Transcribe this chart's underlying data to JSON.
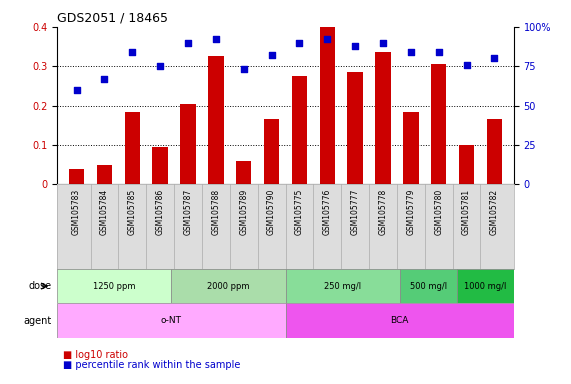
{
  "title": "GDS2051 / 18465",
  "samples": [
    "GSM105783",
    "GSM105784",
    "GSM105785",
    "GSM105786",
    "GSM105787",
    "GSM105788",
    "GSM105789",
    "GSM105790",
    "GSM105775",
    "GSM105776",
    "GSM105777",
    "GSM105778",
    "GSM105779",
    "GSM105780",
    "GSM105781",
    "GSM105782"
  ],
  "log10_ratio": [
    0.04,
    0.05,
    0.185,
    0.095,
    0.205,
    0.325,
    0.06,
    0.165,
    0.275,
    0.4,
    0.285,
    0.335,
    0.185,
    0.305,
    0.1,
    0.165
  ],
  "percentile_rank": [
    60,
    67,
    84,
    75,
    90,
    92,
    73,
    82,
    90,
    92,
    88,
    90,
    84,
    84,
    76,
    80
  ],
  "bar_color": "#cc0000",
  "dot_color": "#0000cc",
  "ylim_left": [
    0,
    0.4
  ],
  "ylim_right": [
    0,
    100
  ],
  "yticks_left": [
    0,
    0.1,
    0.2,
    0.3,
    0.4
  ],
  "yticks_right": [
    0,
    25,
    50,
    75,
    100
  ],
  "ytick_labels_right": [
    "0",
    "25",
    "50",
    "75",
    "100%"
  ],
  "dose_groups": [
    {
      "label": "1250 ppm",
      "start": 0,
      "end": 4,
      "color": "#ccffcc"
    },
    {
      "label": "2000 ppm",
      "start": 4,
      "end": 8,
      "color": "#aaddaa"
    },
    {
      "label": "250 mg/l",
      "start": 8,
      "end": 12,
      "color": "#88dd99"
    },
    {
      "label": "500 mg/l",
      "start": 12,
      "end": 14,
      "color": "#55cc77"
    },
    {
      "label": "1000 mg/l",
      "start": 14,
      "end": 16,
      "color": "#22bb44"
    }
  ],
  "agent_groups": [
    {
      "label": "o-NT",
      "start": 0,
      "end": 8,
      "color": "#ffaaff"
    },
    {
      "label": "BCA",
      "start": 8,
      "end": 16,
      "color": "#ee55ee"
    }
  ],
  "background_color": "#ffffff",
  "label_bg_color": "#dddddd",
  "title_fontsize": 9,
  "label_fontsize": 7
}
